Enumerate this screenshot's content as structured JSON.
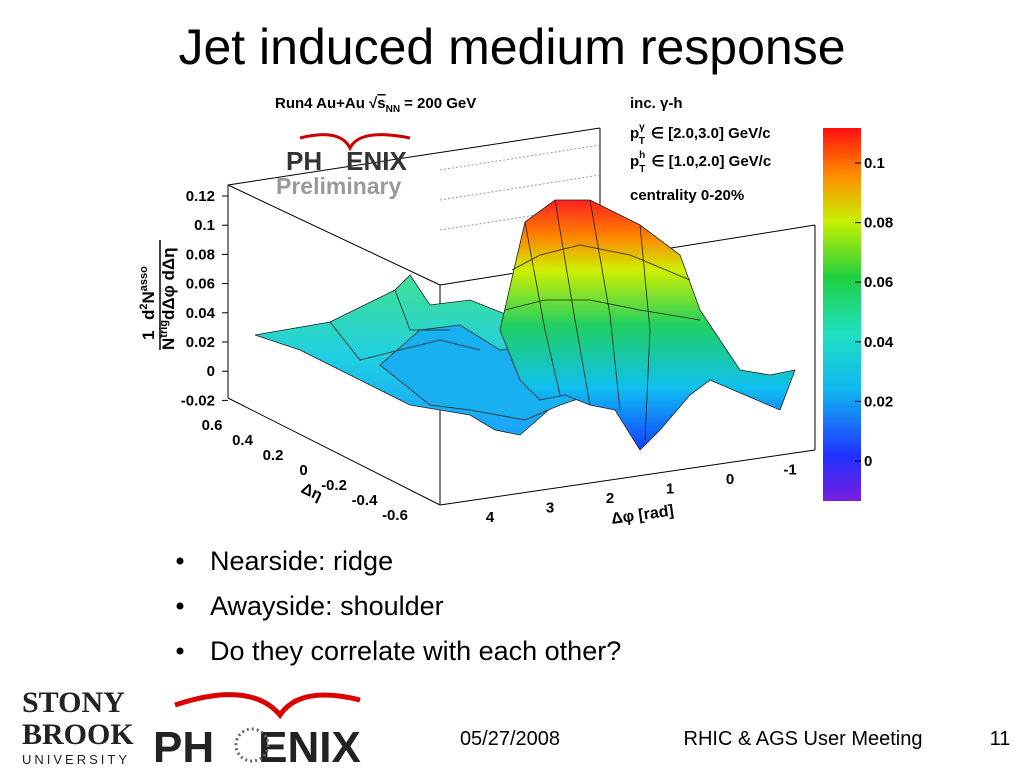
{
  "title": "Jet induced medium response",
  "figure": {
    "header": {
      "run": "Run4 Au+Au",
      "sqrt_s": "s",
      "sqrt_sub": "NN",
      "energy": "= 200 GeV"
    },
    "logo": {
      "left": "PH",
      "right": "ENIX",
      "status": "Preliminary"
    },
    "info": {
      "line1": "inc. γ-h",
      "line2": {
        "symbol": "p",
        "sup": "γ",
        "sub": "T",
        "text": "∈ [2.0,3.0] GeV/c"
      },
      "line3": {
        "symbol": "p",
        "sup": "h",
        "sub": "T",
        "text": "∈ [1.0,2.0] GeV/c"
      },
      "line4": "centrality 0-20%"
    },
    "z_label": {
      "numerator": "1",
      "denominator": "N",
      "den_sup": "trig",
      "den_rest": "dΔφ dΔη",
      "d2": "d",
      "d2_sup": "2",
      "n": "N",
      "n_sup": "asso"
    },
    "z_ticks": [
      "0.12",
      "0.1",
      "0.08",
      "0.06",
      "0.04",
      "0.02",
      "0",
      "-0.02"
    ],
    "eta_ticks": [
      "0.6",
      "0.4",
      "0.2",
      "0",
      "-0.2",
      "-0.4",
      "-0.6"
    ],
    "eta_label": "Δη",
    "phi_ticks": [
      "4",
      "3",
      "2",
      "1",
      "0",
      "-1"
    ],
    "phi_label": "Δφ [rad]",
    "colorbar_ticks": [
      "0.1",
      "0.08",
      "0.06",
      "0.04",
      "0.02",
      "0"
    ]
  },
  "bullets": [
    "Nearside: ridge",
    "Awayside: shoulder",
    "Do they correlate with each other?"
  ],
  "footer": {
    "logo_top": "STONY",
    "logo_mid": "BROOK",
    "logo_bottom": "UNIVERSITY",
    "phenix_left": "PH",
    "phenix_right": "ENIX",
    "date": "05/27/2008",
    "meeting": "RHIC & AGS User Meeting",
    "page": "11"
  }
}
